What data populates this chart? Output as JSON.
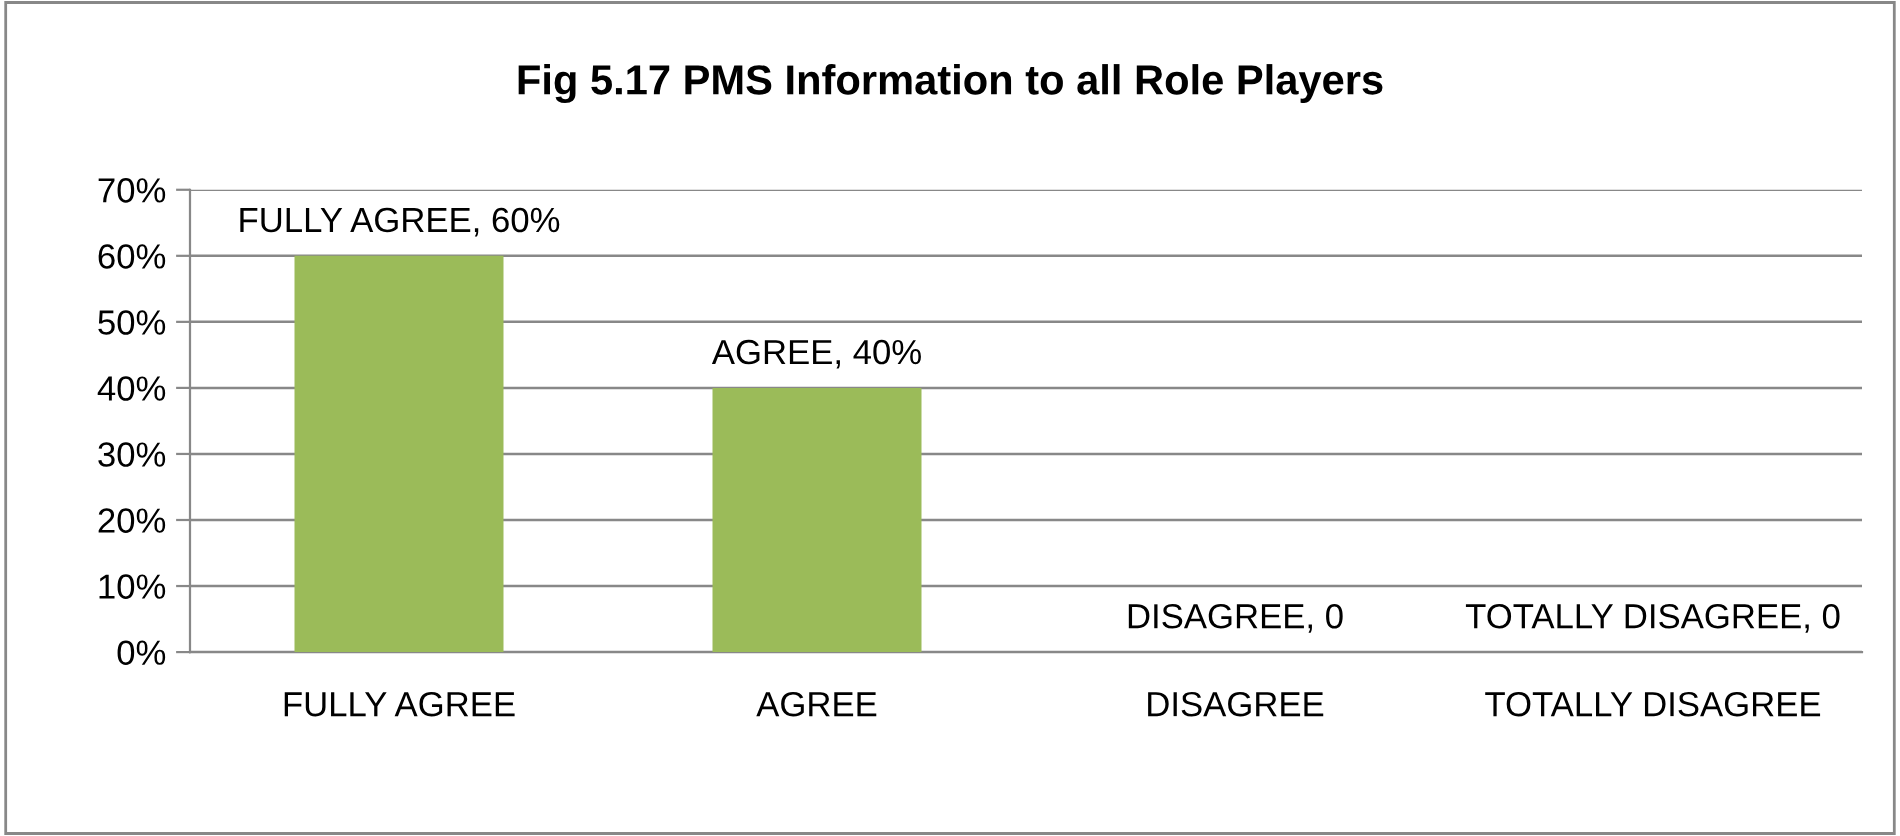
{
  "chart_data": {
    "type": "bar",
    "title": "Fig 5.17 PMS Information to all Role Players",
    "categories": [
      "FULLY AGREE",
      "AGREE",
      "DISAGREE",
      "TOTALLY DISAGREE"
    ],
    "values": [
      60,
      40,
      0,
      0
    ],
    "value_labels": [
      "FULLY AGREE, 60%",
      "AGREE, 40%",
      "DISAGREE, 0",
      "TOTALLY DISAGREE, 0"
    ],
    "color": "#9bbb59",
    "ylim": [
      0,
      70
    ],
    "yticks": [
      {
        "value": 0,
        "label": "0%"
      },
      {
        "value": 10,
        "label": "10%"
      },
      {
        "value": 20,
        "label": "20%"
      },
      {
        "value": 30,
        "label": "30%"
      },
      {
        "value": 40,
        "label": "40%"
      },
      {
        "value": 50,
        "label": "50%"
      },
      {
        "value": 60,
        "label": "60%"
      },
      {
        "value": 70,
        "label": "70%"
      }
    ],
    "grid": "y",
    "legend": false
  }
}
